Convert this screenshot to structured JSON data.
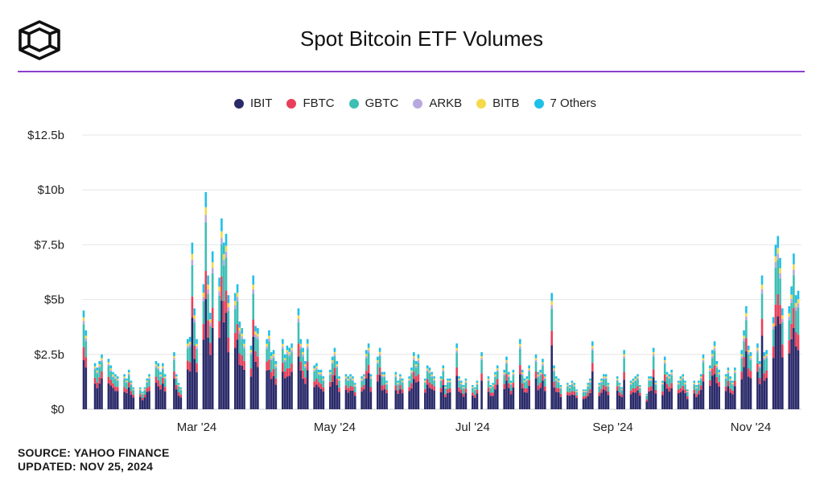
{
  "header": {
    "title": "Spot Bitcoin ETF Volumes"
  },
  "footer": {
    "source": "SOURCE: YAHOO FINANCE",
    "updated": "UPDATED: NOV 25, 2024"
  },
  "chart_data": {
    "type": "bar",
    "stacked": true,
    "title": "Spot Bitcoin ETF Volumes",
    "legend_position": "top-center",
    "grid": true,
    "y_ticks": [
      "$0",
      "$2.5b",
      "$5b",
      "$7.5b",
      "$10b",
      "$12.5b"
    ],
    "ylim": [
      0,
      12.5
    ],
    "unit": "$b",
    "x_ticks": [
      "Mar '24",
      "May '24",
      "Jul '24",
      "Sep '24",
      "Nov '24"
    ],
    "x_tick_dates": [
      "2024-03-01",
      "2024-05-01",
      "2024-07-01",
      "2024-09-01",
      "2024-11-01"
    ],
    "xlim": [
      "2024-01-11",
      "2024-11-22"
    ],
    "series": [
      {
        "name": "IBIT",
        "color": "#2a2a6a"
      },
      {
        "name": "FBTC",
        "color": "#e8405a"
      },
      {
        "name": "GBTC",
        "color": "#3ebfb4"
      },
      {
        "name": "ARKB",
        "color": "#b7a9e0"
      },
      {
        "name": "BITB",
        "color": "#f5d94a"
      },
      {
        "name": "7 Others",
        "color": "#1fc0e8"
      }
    ],
    "totals": [
      [
        "2024-01-11",
        4.5
      ],
      [
        "2024-01-12",
        3.6
      ],
      [
        "2024-01-16",
        2.1
      ],
      [
        "2024-01-17",
        1.9
      ],
      [
        "2024-01-18",
        2.2
      ],
      [
        "2024-01-19",
        2.5
      ],
      [
        "2024-01-22",
        2.3
      ],
      [
        "2024-01-23",
        2.0
      ],
      [
        "2024-01-24",
        1.7
      ],
      [
        "2024-01-25",
        1.6
      ],
      [
        "2024-01-26",
        1.5
      ],
      [
        "2024-01-29",
        1.6
      ],
      [
        "2024-01-30",
        1.4
      ],
      [
        "2024-01-31",
        1.8
      ],
      [
        "2024-02-01",
        1.3
      ],
      [
        "2024-02-02",
        1.0
      ],
      [
        "2024-02-05",
        1.0
      ],
      [
        "2024-02-06",
        0.8
      ],
      [
        "2024-02-07",
        1.0
      ],
      [
        "2024-02-08",
        1.4
      ],
      [
        "2024-02-09",
        1.6
      ],
      [
        "2024-02-12",
        2.2
      ],
      [
        "2024-02-13",
        2.1
      ],
      [
        "2024-02-14",
        1.7
      ],
      [
        "2024-02-15",
        2.1
      ],
      [
        "2024-02-16",
        1.6
      ],
      [
        "2024-02-20",
        2.6
      ],
      [
        "2024-02-21",
        1.6
      ],
      [
        "2024-02-22",
        1.2
      ],
      [
        "2024-02-23",
        1.0
      ],
      [
        "2024-02-26",
        3.2
      ],
      [
        "2024-02-27",
        3.3
      ],
      [
        "2024-02-28",
        7.6
      ],
      [
        "2024-02-29",
        4.6
      ],
      [
        "2024-03-01",
        3.2
      ],
      [
        "2024-03-04",
        5.7
      ],
      [
        "2024-03-05",
        9.9
      ],
      [
        "2024-03-06",
        6.1
      ],
      [
        "2024-03-07",
        4.4
      ],
      [
        "2024-03-08",
        7.2
      ],
      [
        "2024-03-11",
        6.0
      ],
      [
        "2024-03-12",
        8.7
      ],
      [
        "2024-03-13",
        7.6
      ],
      [
        "2024-03-14",
        8.0
      ],
      [
        "2024-03-15",
        5.2
      ],
      [
        "2024-03-18",
        5.3
      ],
      [
        "2024-03-19",
        5.7
      ],
      [
        "2024-03-20",
        4.0
      ],
      [
        "2024-03-21",
        3.7
      ],
      [
        "2024-03-22",
        3.2
      ],
      [
        "2024-03-25",
        2.9
      ],
      [
        "2024-03-26",
        6.1
      ],
      [
        "2024-03-27",
        3.8
      ],
      [
        "2024-03-28",
        3.7
      ],
      [
        "2024-04-01",
        3.2
      ],
      [
        "2024-04-02",
        3.6
      ],
      [
        "2024-04-03",
        2.6
      ],
      [
        "2024-04-04",
        2.7
      ],
      [
        "2024-04-05",
        2.2
      ],
      [
        "2024-04-08",
        3.2
      ],
      [
        "2024-04-09",
        2.5
      ],
      [
        "2024-04-10",
        2.9
      ],
      [
        "2024-04-11",
        2.8
      ],
      [
        "2024-04-12",
        3.0
      ],
      [
        "2024-04-15",
        4.6
      ],
      [
        "2024-04-16",
        3.2
      ],
      [
        "2024-04-17",
        2.8
      ],
      [
        "2024-04-18",
        2.2
      ],
      [
        "2024-04-19",
        3.2
      ],
      [
        "2024-04-22",
        2.0
      ],
      [
        "2024-04-23",
        2.1
      ],
      [
        "2024-04-24",
        1.8
      ],
      [
        "2024-04-25",
        1.8
      ],
      [
        "2024-04-26",
        1.5
      ],
      [
        "2024-04-29",
        1.8
      ],
      [
        "2024-04-30",
        2.4
      ],
      [
        "2024-05-01",
        2.8
      ],
      [
        "2024-05-02",
        2.2
      ],
      [
        "2024-05-03",
        1.5
      ],
      [
        "2024-05-06",
        1.6
      ],
      [
        "2024-05-07",
        1.5
      ],
      [
        "2024-05-08",
        1.6
      ],
      [
        "2024-05-09",
        1.5
      ],
      [
        "2024-05-10",
        1.2
      ],
      [
        "2024-05-13",
        1.5
      ],
      [
        "2024-05-14",
        1.6
      ],
      [
        "2024-05-15",
        2.7
      ],
      [
        "2024-05-16",
        3.0
      ],
      [
        "2024-05-17",
        1.6
      ],
      [
        "2024-05-20",
        2.4
      ],
      [
        "2024-05-21",
        2.8
      ],
      [
        "2024-05-22",
        1.7
      ],
      [
        "2024-05-23",
        1.7
      ],
      [
        "2024-05-24",
        1.3
      ],
      [
        "2024-05-28",
        1.7
      ],
      [
        "2024-05-29",
        1.3
      ],
      [
        "2024-05-30",
        1.6
      ],
      [
        "2024-05-31",
        1.4
      ],
      [
        "2024-06-03",
        1.5
      ],
      [
        "2024-06-04",
        1.9
      ],
      [
        "2024-06-05",
        2.6
      ],
      [
        "2024-06-06",
        2.2
      ],
      [
        "2024-06-07",
        2.5
      ],
      [
        "2024-06-10",
        1.4
      ],
      [
        "2024-06-11",
        2.0
      ],
      [
        "2024-06-12",
        1.9
      ],
      [
        "2024-06-13",
        1.7
      ],
      [
        "2024-06-14",
        1.5
      ],
      [
        "2024-06-17",
        1.5
      ],
      [
        "2024-06-18",
        2.0
      ],
      [
        "2024-06-19",
        1.1
      ],
      [
        "2024-06-20",
        1.4
      ],
      [
        "2024-06-21",
        1.4
      ],
      [
        "2024-06-24",
        3.0
      ],
      [
        "2024-06-25",
        1.5
      ],
      [
        "2024-06-26",
        1.3
      ],
      [
        "2024-06-27",
        1.1
      ],
      [
        "2024-06-28",
        1.4
      ],
      [
        "2024-07-01",
        1.1
      ],
      [
        "2024-07-02",
        1.0
      ],
      [
        "2024-07-03",
        1.3
      ],
      [
        "2024-07-05",
        2.6
      ],
      [
        "2024-07-08",
        1.5
      ],
      [
        "2024-07-09",
        1.1
      ],
      [
        "2024-07-10",
        1.2
      ],
      [
        "2024-07-11",
        1.7
      ],
      [
        "2024-07-12",
        2.0
      ],
      [
        "2024-07-15",
        1.8
      ],
      [
        "2024-07-16",
        2.4
      ],
      [
        "2024-07-17",
        1.7
      ],
      [
        "2024-07-18",
        1.3
      ],
      [
        "2024-07-19",
        1.8
      ],
      [
        "2024-07-22",
        3.2
      ],
      [
        "2024-07-23",
        1.8
      ],
      [
        "2024-07-24",
        1.4
      ],
      [
        "2024-07-25",
        1.5
      ],
      [
        "2024-07-26",
        2.0
      ],
      [
        "2024-07-29",
        2.5
      ],
      [
        "2024-07-30",
        1.7
      ],
      [
        "2024-07-31",
        1.8
      ],
      [
        "2024-08-01",
        2.3
      ],
      [
        "2024-08-02",
        1.6
      ],
      [
        "2024-08-05",
        5.3
      ],
      [
        "2024-08-06",
        2.0
      ],
      [
        "2024-08-07",
        1.5
      ],
      [
        "2024-08-08",
        1.4
      ],
      [
        "2024-08-09",
        1.1
      ],
      [
        "2024-08-12",
        1.2
      ],
      [
        "2024-08-13",
        1.1
      ],
      [
        "2024-08-14",
        1.3
      ],
      [
        "2024-08-15",
        1.2
      ],
      [
        "2024-08-16",
        0.9
      ],
      [
        "2024-08-19",
        0.9
      ],
      [
        "2024-08-20",
        0.9
      ],
      [
        "2024-08-21",
        1.2
      ],
      [
        "2024-08-22",
        1.4
      ],
      [
        "2024-08-23",
        3.1
      ],
      [
        "2024-08-26",
        1.2
      ],
      [
        "2024-08-27",
        1.4
      ],
      [
        "2024-08-28",
        1.6
      ],
      [
        "2024-08-29",
        1.6
      ],
      [
        "2024-08-30",
        1.2
      ],
      [
        "2024-09-03",
        1.5
      ],
      [
        "2024-09-04",
        1.2
      ],
      [
        "2024-09-05",
        1.0
      ],
      [
        "2024-09-06",
        2.7
      ],
      [
        "2024-09-09",
        1.3
      ],
      [
        "2024-09-10",
        1.4
      ],
      [
        "2024-09-11",
        1.5
      ],
      [
        "2024-09-12",
        1.6
      ],
      [
        "2024-09-13",
        1.1
      ],
      [
        "2024-09-16",
        0.7
      ],
      [
        "2024-09-17",
        1.5
      ],
      [
        "2024-09-18",
        1.5
      ],
      [
        "2024-09-19",
        2.8
      ],
      [
        "2024-09-20",
        1.3
      ],
      [
        "2024-09-23",
        1.3
      ],
      [
        "2024-09-24",
        2.4
      ],
      [
        "2024-09-25",
        1.7
      ],
      [
        "2024-09-26",
        1.6
      ],
      [
        "2024-09-27",
        1.8
      ],
      [
        "2024-09-30",
        1.3
      ],
      [
        "2024-10-01",
        1.5
      ],
      [
        "2024-10-02",
        1.6
      ],
      [
        "2024-10-03",
        1.3
      ],
      [
        "2024-10-04",
        0.9
      ],
      [
        "2024-10-07",
        1.3
      ],
      [
        "2024-10-08",
        1.1
      ],
      [
        "2024-10-09",
        1.3
      ],
      [
        "2024-10-10",
        1.6
      ],
      [
        "2024-10-11",
        2.5
      ],
      [
        "2024-10-14",
        2.0
      ],
      [
        "2024-10-15",
        2.7
      ],
      [
        "2024-10-16",
        3.1
      ],
      [
        "2024-10-17",
        2.2
      ],
      [
        "2024-10-18",
        1.8
      ],
      [
        "2024-10-21",
        1.6
      ],
      [
        "2024-10-22",
        1.9
      ],
      [
        "2024-10-23",
        1.5
      ],
      [
        "2024-10-24",
        1.3
      ],
      [
        "2024-10-25",
        1.9
      ],
      [
        "2024-10-28",
        2.7
      ],
      [
        "2024-10-29",
        3.6
      ],
      [
        "2024-10-30",
        4.7
      ],
      [
        "2024-10-31",
        2.9
      ],
      [
        "2024-11-01",
        2.6
      ],
      [
        "2024-11-04",
        3.0
      ],
      [
        "2024-11-05",
        2.2
      ],
      [
        "2024-11-06",
        6.1
      ],
      [
        "2024-11-07",
        2.6
      ],
      [
        "2024-11-08",
        2.7
      ],
      [
        "2024-11-11",
        4.2
      ],
      [
        "2024-11-12",
        7.5
      ],
      [
        "2024-11-13",
        7.9
      ],
      [
        "2024-11-14",
        6.9
      ],
      [
        "2024-11-15",
        4.6
      ],
      [
        "2024-11-18",
        4.7
      ],
      [
        "2024-11-19",
        5.6
      ],
      [
        "2024-11-20",
        7.1
      ],
      [
        "2024-11-21",
        5.2
      ],
      [
        "2024-11-22",
        5.4
      ]
    ]
  }
}
